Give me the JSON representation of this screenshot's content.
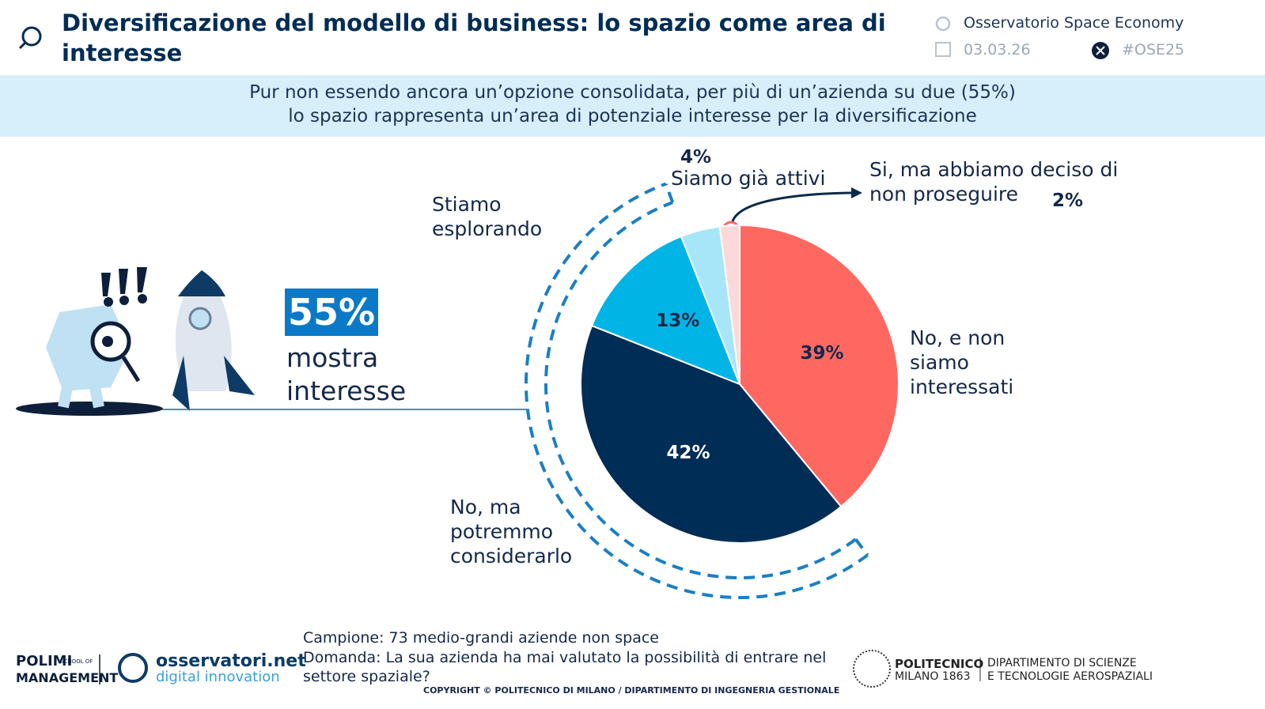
{
  "header": {
    "title": "Diversificazione del modello di business: lo spazio come area di interesse",
    "observatory": "Osservatorio Space Economy",
    "date": "03.03.26",
    "hashtag": "#OSE25"
  },
  "banner": [
    "Pur non essendo ancora un’opzione consolidata, per più di un’azienda su due (55%)",
    "lo spazio rappresenta un’area di potenziale interesse per la diversificazione"
  ],
  "callout": {
    "value": "55%",
    "text": "mostra interesse"
  },
  "chart_data": {
    "type": "pie",
    "categories": [
      "No, e non siamo interessati",
      "No, ma potremmo considerarlo",
      "Stiamo esplorando",
      "Siamo già attivi",
      "Si, ma abbiamo deciso di non proseguire"
    ],
    "values": [
      39,
      42,
      13,
      4,
      2
    ],
    "value_labels": [
      "39%",
      "42%",
      "13%",
      "4%",
      "2%"
    ],
    "colors": [
      "#fe6861",
      "#002d55",
      "#00b4e6",
      "#a6e6f8",
      "#fbd9da"
    ]
  },
  "footer": {
    "sample": "Campione: 73 medio-grandi aziende non space",
    "question": "Domanda: La sua azienda ha mai valutato la possibilità di entrare nel settore spaziale?",
    "copyright": "COPYRIGHT © POLITECNICO DI MILANO / DIPARTIMENTO DI INGEGNERIA GESTIONALE",
    "logos": [
      "POLIMI",
      "SCHOOL OF",
      "MANAGEMENT",
      "osservatori.net",
      "digital innovation",
      "POLITECNICO",
      "MILANO 1863",
      "DIPARTIMENTO DI SCIENZE",
      "E TECNOLOGIE AEROSPAZIALI"
    ]
  }
}
